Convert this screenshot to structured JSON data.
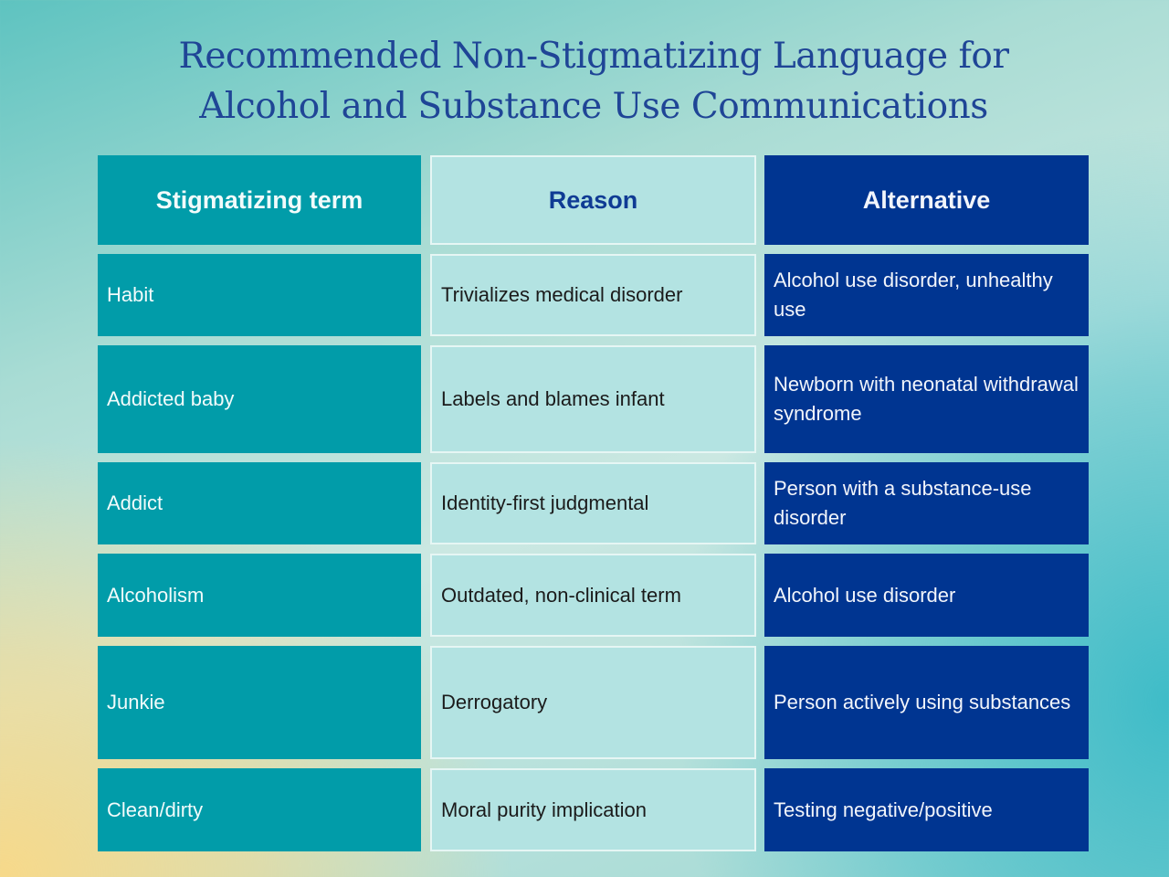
{
  "title_line1": "Recommended Non-Stigmatizing Language for",
  "title_line2": "Alcohol and Substance Use Communications",
  "headers": [
    "Stigmatizing term",
    "Reason",
    "Alternative"
  ],
  "rows": [
    [
      "Habit",
      "Trivializes medical disorder",
      "Alcohol use disorder, unhealthy use"
    ],
    [
      "Addicted baby",
      "Labels and blames infant",
      "Newborn with neonatal withdrawal syndrome"
    ],
    [
      "Addict",
      "Identity-first judgmental",
      "Person with a substance-use disorder"
    ],
    [
      "Alcoholism",
      "Outdated, non-clinical term",
      "Alcohol use disorder"
    ],
    [
      "Junkie",
      "Derrogatory",
      "Person actively using substances"
    ],
    [
      "Clean/dirty",
      "Moral purity implication",
      "Testing negative/positive"
    ]
  ],
  "colors": {
    "stigmatizing": "#019ca9",
    "reason": "#b3e3e2",
    "alternative": "#003591",
    "title": "#1f4596"
  }
}
